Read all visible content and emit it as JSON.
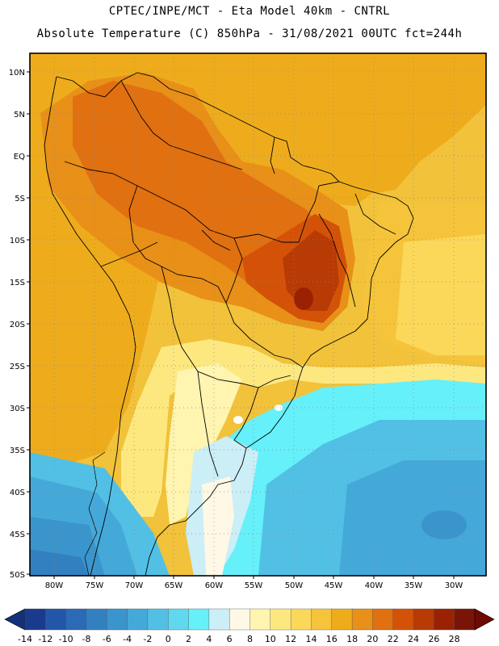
{
  "header": {
    "line1": "CPTEC/INPE/MCT  -  Eta Model 40km  -  CNTRL",
    "line2": "Absolute Temperature (C) 850hPa - 31/08/2021 00UTC fct=244h"
  },
  "map": {
    "lat_labels": [
      "10N",
      "5N",
      "EQ",
      "5S",
      "10S",
      "15S",
      "20S",
      "25S",
      "30S",
      "35S",
      "40S",
      "45S",
      "50S"
    ],
    "lon_labels": [
      "80W",
      "75W",
      "70W",
      "65W",
      "60W",
      "55W",
      "50W",
      "45W",
      "40W",
      "35W",
      "30W"
    ]
  },
  "colorbar": {
    "ticks": [
      "-14",
      "-12",
      "-10",
      "-8",
      "-6",
      "-4",
      "-2",
      "0",
      "2",
      "4",
      "6",
      "8",
      "10",
      "12",
      "14",
      "16",
      "18",
      "20",
      "22",
      "24",
      "26",
      "28"
    ],
    "colors": [
      "#1a3a8c",
      "#2256a8",
      "#2b6ab4",
      "#3380c0",
      "#3a95cc",
      "#44a9d8",
      "#52c0e4",
      "#60d8ee",
      "#66f0fa",
      "#cceef6",
      "#fff8e6",
      "#fff4b0",
      "#fde880",
      "#fbd85a",
      "#f5c43a",
      "#eeac1c",
      "#e89018",
      "#e07010",
      "#d35208",
      "#b83a04",
      "#9a2202",
      "#7a1406"
    ],
    "left_arrow_color": "#14307a",
    "right_arrow_color": "#6e0a02"
  }
}
